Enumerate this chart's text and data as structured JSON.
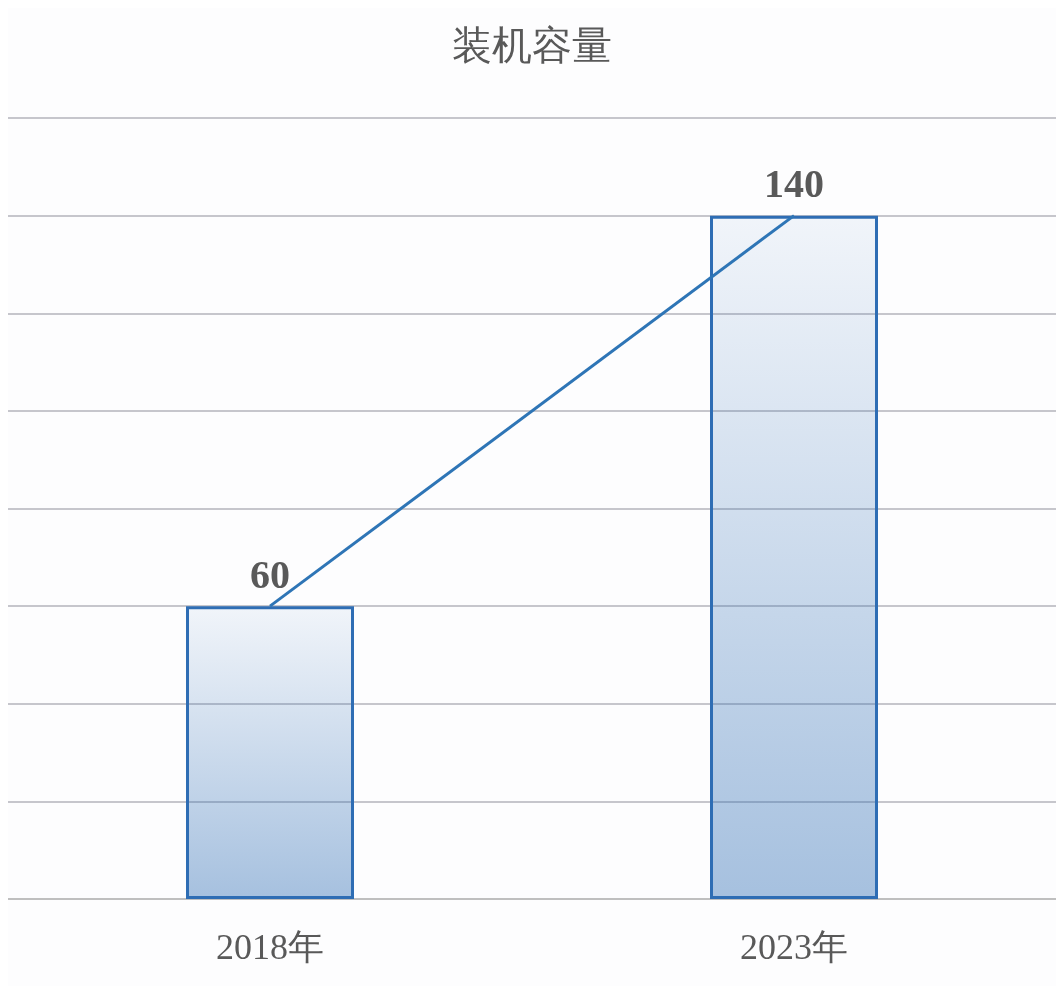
{
  "chart_data": {
    "type": "bar",
    "title": "装机容量",
    "categories": [
      "2018年",
      "2023年"
    ],
    "series": [
      {
        "color": "#2e6db4",
        "values": [
          60,
          140
        ],
        "value_labels": [
          "60",
          "140"
        ]
      },
      {
        "type": "line",
        "color": "#2e75b6",
        "values": [
          60,
          140
        ]
      }
    ],
    "ylim": [
      0,
      160
    ],
    "yticks": [
      {
        "value": 0,
        "label": null
      },
      {
        "value": 20,
        "label": null
      },
      {
        "value": 40,
        "label": null
      },
      {
        "value": 60,
        "label": null
      },
      {
        "value": 80,
        "label": null
      },
      {
        "value": 100,
        "label": null
      },
      {
        "value": 120,
        "label": null
      },
      {
        "value": 140,
        "label": null
      },
      {
        "value": 160,
        "label": null
      }
    ],
    "tick_labels": "x",
    "grid": "y",
    "marker": "none",
    "line_style": "solid"
  }
}
